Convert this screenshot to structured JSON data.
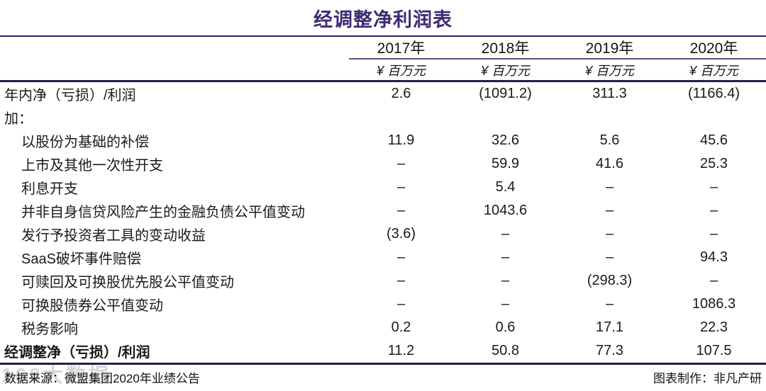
{
  "title": "经调整净利润表",
  "chart_data": {
    "type": "table",
    "title": "经调整净利润表",
    "columns": [
      "2017年",
      "2018年",
      "2019年",
      "2020年"
    ],
    "unit_row": [
      "¥ 百万元",
      "¥ 百万元",
      "¥ 百万元",
      "¥ 百万元"
    ],
    "rows": [
      {
        "label": "年内净（亏损）/利润",
        "indent": false,
        "bold": false,
        "values": [
          "2.6",
          "(1091.2)",
          "311.3",
          "(1166.4)"
        ],
        "numeric": [
          2.6,
          -1091.2,
          311.3,
          -1166.4
        ]
      },
      {
        "label": "加：",
        "indent": false,
        "bold": false,
        "values": [
          "",
          "",
          "",
          ""
        ],
        "numeric": [
          null,
          null,
          null,
          null
        ]
      },
      {
        "label": "以股份为基础的补偿",
        "indent": true,
        "bold": false,
        "values": [
          "11.9",
          "32.6",
          "5.6",
          "45.6"
        ],
        "numeric": [
          11.9,
          32.6,
          5.6,
          45.6
        ]
      },
      {
        "label": "上市及其他一次性开支",
        "indent": true,
        "bold": false,
        "values": [
          "–",
          "59.9",
          "41.6",
          "25.3"
        ],
        "numeric": [
          null,
          59.9,
          41.6,
          25.3
        ]
      },
      {
        "label": "利息开支",
        "indent": true,
        "bold": false,
        "values": [
          "–",
          "5.4",
          "–",
          "–"
        ],
        "numeric": [
          null,
          5.4,
          null,
          null
        ]
      },
      {
        "label": "并非自身信贷风险产生的金融负债公平值变动",
        "indent": true,
        "bold": false,
        "values": [
          "–",
          "1043.6",
          "–",
          "–"
        ],
        "numeric": [
          null,
          1043.6,
          null,
          null
        ]
      },
      {
        "label": "发行予投资者工具的变动收益",
        "indent": true,
        "bold": false,
        "values": [
          "(3.6)",
          "–",
          "–",
          "–"
        ],
        "numeric": [
          -3.6,
          null,
          null,
          null
        ]
      },
      {
        "label": "SaaS破坏事件赔偿",
        "indent": true,
        "bold": false,
        "values": [
          "–",
          "–",
          "–",
          "94.3"
        ],
        "numeric": [
          null,
          null,
          null,
          94.3
        ]
      },
      {
        "label": "可赎回及可换股优先股公平值变动",
        "indent": true,
        "bold": false,
        "values": [
          "–",
          "–",
          "(298.3)",
          "–"
        ],
        "numeric": [
          null,
          null,
          -298.3,
          null
        ]
      },
      {
        "label": "可换股债券公平值变动",
        "indent": true,
        "bold": false,
        "values": [
          "–",
          "–",
          "–",
          "1086.3"
        ],
        "numeric": [
          null,
          null,
          null,
          1086.3
        ]
      },
      {
        "label": "税务影响",
        "indent": true,
        "bold": false,
        "values": [
          "0.2",
          "0.6",
          "17.1",
          "22.3"
        ],
        "numeric": [
          0.2,
          0.6,
          17.1,
          22.3
        ]
      },
      {
        "label": "经调整净（亏损）/利润",
        "indent": false,
        "bold": true,
        "values": [
          "11.2",
          "50.8",
          "77.3",
          "107.5"
        ],
        "numeric": [
          11.2,
          50.8,
          77.3,
          107.5
        ]
      }
    ],
    "layout": {
      "value_alignment": "center",
      "grid": "horizontal-rules-only"
    }
  },
  "footer": {
    "source": "数据来源：微盟集团2020年业绩公告",
    "credit": "图表制作：非凡产研"
  },
  "watermark": "168大数据",
  "colors": {
    "title": "#3e2b72",
    "rule_thin": "#5b5184",
    "rule_thick": "#251d50",
    "text": "#1a1a1a",
    "watermark": "#9a99a6"
  }
}
